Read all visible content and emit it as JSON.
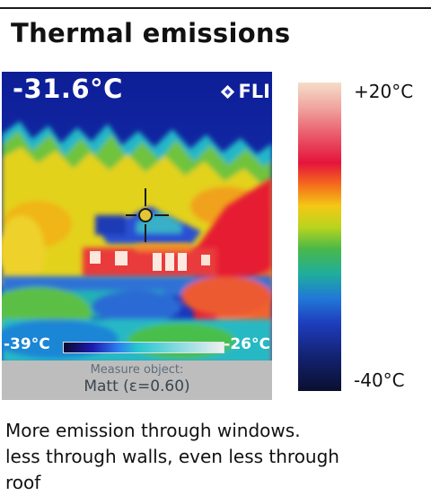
{
  "title": "Thermal emissions",
  "camera": {
    "spot_temperature": "-31.6°C",
    "brand": "FLI",
    "brand_icon": "flir-diamond-logo-icon",
    "scale_min": "-39°C",
    "scale_max": "-26°C",
    "measure_label": "Measure object:",
    "measure_value": "Matt (ε=0.60)"
  },
  "legend": {
    "top_label": "+20°C",
    "bottom_label": "-40°C",
    "colors": [
      "#f5ddc8",
      "#e4143c",
      "#f4c815",
      "#49b84a",
      "#2178d8",
      "#0a0f2f"
    ]
  },
  "caption": {
    "line1": "More emission through windows.",
    "line2": "less through walls, even less through",
    "line3": "roof"
  }
}
